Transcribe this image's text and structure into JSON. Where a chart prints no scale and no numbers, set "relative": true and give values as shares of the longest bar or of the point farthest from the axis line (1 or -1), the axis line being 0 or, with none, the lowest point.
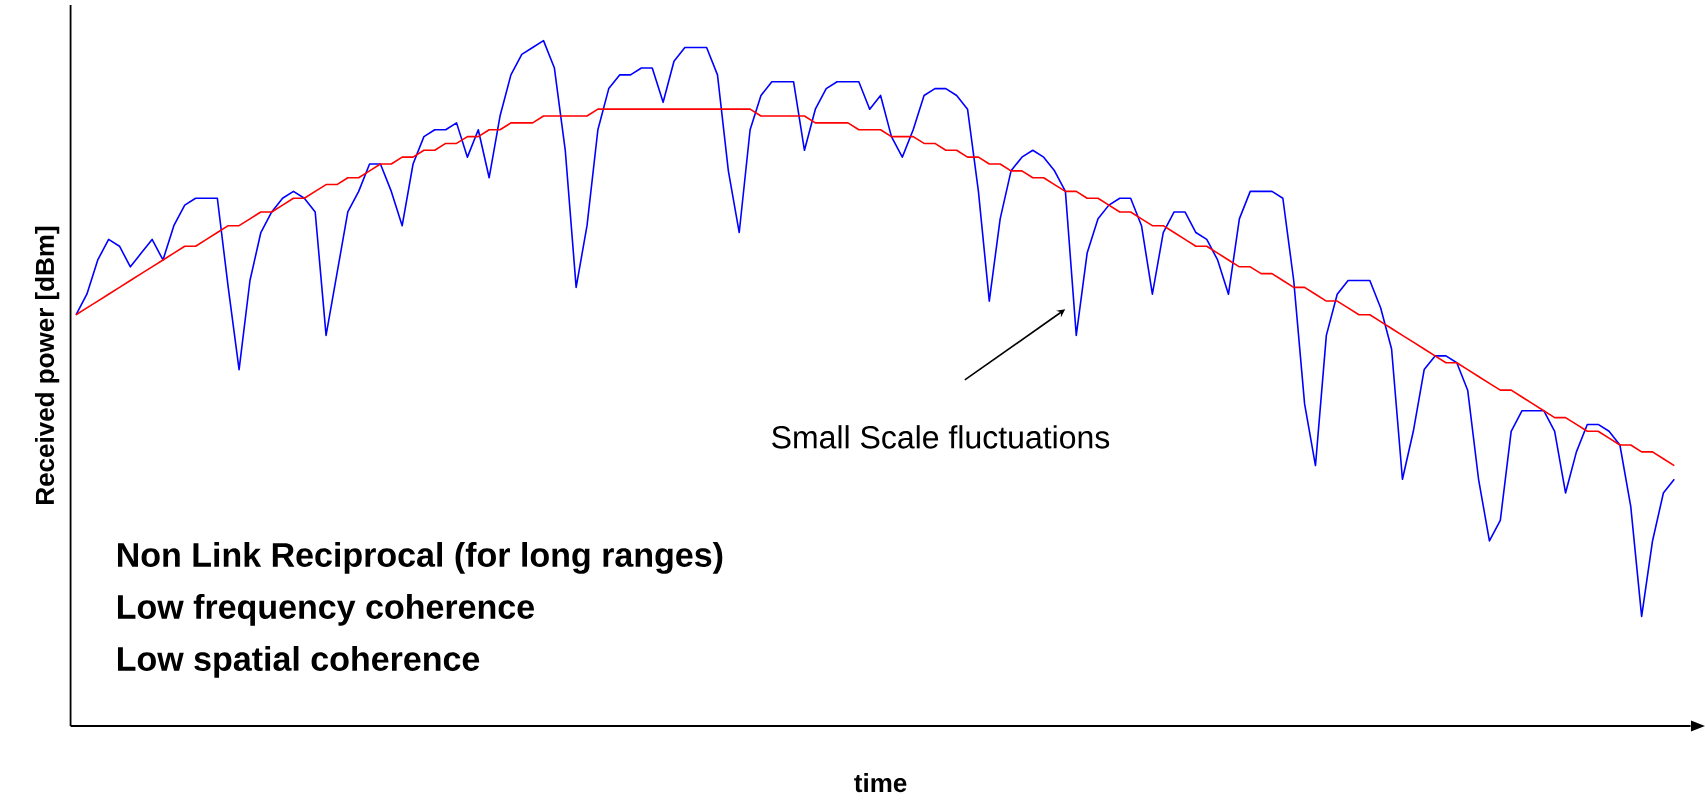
{
  "chart_data": {
    "type": "line",
    "relative": true,
    "xlabel": "time",
    "ylabel": "Received power [dBm]",
    "categories": [
      null,
      null,
      null,
      null,
      null,
      null,
      null,
      null,
      null,
      null,
      null,
      null,
      null,
      null,
      null,
      null,
      null,
      null,
      null,
      null,
      null,
      null,
      null,
      null,
      null,
      null,
      null,
      null,
      null,
      null,
      null,
      null,
      null,
      null,
      null,
      null,
      null,
      null,
      null,
      null,
      null,
      null,
      null,
      null,
      null,
      null,
      null,
      null,
      null,
      null,
      null,
      null,
      null,
      null,
      null,
      null,
      null,
      null,
      null,
      null,
      null,
      null,
      null,
      null,
      null,
      null,
      null,
      null,
      null,
      null,
      null,
      null,
      null,
      null,
      null,
      null,
      null,
      null,
      null,
      null,
      null,
      null,
      null,
      null,
      null,
      null,
      null,
      null,
      null,
      null,
      null,
      null,
      null,
      null,
      null,
      null,
      null,
      null,
      null,
      null,
      null,
      null,
      null,
      null,
      null,
      null,
      null,
      null,
      null,
      null,
      null,
      null,
      null,
      null,
      null,
      null,
      null,
      null,
      null,
      null,
      null,
      null,
      null,
      null,
      null,
      null,
      null,
      null,
      null,
      null,
      null,
      null,
      null,
      null,
      null,
      null,
      null,
      null,
      null,
      null,
      null,
      null,
      null,
      null,
      null,
      null,
      null,
      null
    ],
    "series": [
      {
        "color": "#0000ff",
        "values": [
          0.6,
          0.63,
          0.68,
          0.71,
          0.7,
          0.67,
          0.69,
          0.71,
          0.68,
          0.73,
          0.76,
          0.77,
          0.77,
          0.77,
          0.64,
          0.52,
          0.65,
          0.72,
          0.75,
          0.77,
          0.78,
          0.77,
          0.75,
          0.57,
          0.66,
          0.75,
          0.78,
          0.82,
          0.82,
          0.78,
          0.73,
          0.82,
          0.86,
          0.87,
          0.87,
          0.88,
          0.83,
          0.87,
          0.8,
          0.89,
          0.95,
          0.98,
          0.99,
          1.0,
          0.96,
          0.84,
          0.64,
          0.73,
          0.87,
          0.93,
          0.95,
          0.95,
          0.96,
          0.96,
          0.91,
          0.97,
          0.99,
          0.99,
          0.99,
          0.95,
          0.81,
          0.72,
          0.87,
          0.92,
          0.94,
          0.94,
          0.94,
          0.84,
          0.9,
          0.93,
          0.94,
          0.94,
          0.94,
          0.9,
          0.92,
          0.86,
          0.83,
          0.87,
          0.92,
          0.93,
          0.93,
          0.92,
          0.9,
          0.78,
          0.62,
          0.74,
          0.81,
          0.83,
          0.84,
          0.83,
          0.81,
          0.78,
          0.57,
          0.69,
          0.74,
          0.76,
          0.77,
          0.77,
          0.73,
          0.63,
          0.72,
          0.75,
          0.75,
          0.72,
          0.71,
          0.68,
          0.63,
          0.74,
          0.78,
          0.78,
          0.78,
          0.77,
          0.65,
          0.47,
          0.38,
          0.57,
          0.63,
          0.65,
          0.65,
          0.65,
          0.61,
          0.55,
          0.36,
          0.43,
          0.52,
          0.54,
          0.54,
          0.53,
          0.49,
          0.36,
          0.27,
          0.3,
          0.43,
          0.46,
          0.46,
          0.46,
          0.43,
          0.34,
          0.4,
          0.44,
          0.44,
          0.43,
          0.41,
          0.32,
          0.16,
          0.27,
          0.34,
          0.36
        ]
      },
      {
        "color": "#ff0000",
        "values": [
          0.6,
          0.61,
          0.62,
          0.63,
          0.64,
          0.65,
          0.66,
          0.67,
          0.68,
          0.69,
          0.7,
          0.7,
          0.71,
          0.72,
          0.73,
          0.73,
          0.74,
          0.75,
          0.75,
          0.76,
          0.77,
          0.77,
          0.78,
          0.79,
          0.79,
          0.8,
          0.8,
          0.81,
          0.82,
          0.82,
          0.83,
          0.83,
          0.84,
          0.84,
          0.85,
          0.85,
          0.86,
          0.86,
          0.87,
          0.87,
          0.88,
          0.88,
          0.88,
          0.89,
          0.89,
          0.89,
          0.89,
          0.89,
          0.9,
          0.9,
          0.9,
          0.9,
          0.9,
          0.9,
          0.9,
          0.9,
          0.9,
          0.9,
          0.9,
          0.9,
          0.9,
          0.9,
          0.9,
          0.89,
          0.89,
          0.89,
          0.89,
          0.89,
          0.88,
          0.88,
          0.88,
          0.88,
          0.87,
          0.87,
          0.87,
          0.86,
          0.86,
          0.86,
          0.85,
          0.85,
          0.84,
          0.84,
          0.83,
          0.83,
          0.82,
          0.82,
          0.81,
          0.81,
          0.8,
          0.8,
          0.79,
          0.78,
          0.78,
          0.77,
          0.77,
          0.76,
          0.75,
          0.75,
          0.74,
          0.73,
          0.73,
          0.72,
          0.71,
          0.7,
          0.7,
          0.69,
          0.68,
          0.67,
          0.67,
          0.66,
          0.66,
          0.65,
          0.64,
          0.64,
          0.63,
          0.62,
          0.62,
          0.61,
          0.6,
          0.6,
          0.59,
          0.58,
          0.57,
          0.56,
          0.55,
          0.54,
          0.53,
          0.53,
          0.52,
          0.51,
          0.5,
          0.49,
          0.49,
          0.48,
          0.47,
          0.46,
          0.45,
          0.45,
          0.44,
          0.43,
          0.43,
          0.42,
          0.41,
          0.41,
          0.4,
          0.4,
          0.39,
          0.38
        ]
      }
    ],
    "annotations": [
      "Small Scale fluctuations",
      "Non Link Reciprocal (for long ranges)",
      "Low frequency coherence",
      "Low spatial coherence"
    ]
  }
}
